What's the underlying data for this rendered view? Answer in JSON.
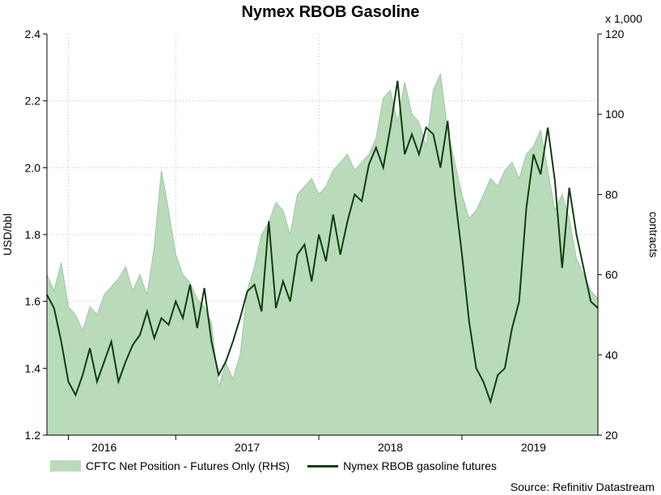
{
  "chart_data": {
    "type": "line",
    "title": "Nymex RBOB Gasoline",
    "ylabel": "USD/bbl",
    "y2label": "contracts",
    "y2_multiplier_label": "x 1,000",
    "ylim": [
      1.2,
      2.4
    ],
    "y2lim": [
      20,
      120
    ],
    "yticks": [
      "1.2",
      "1.4",
      "1.6",
      "1.8",
      "2.0",
      "2.2",
      "2.4"
    ],
    "y2ticks": [
      "20",
      "40",
      "60",
      "80",
      "100",
      "120"
    ],
    "xlim": [
      2015.6,
      2019.45
    ],
    "xticks": [
      {
        "label": "2016",
        "x": 2016.0
      },
      {
        "label": "2017",
        "x": 2017.0
      },
      {
        "label": "2018",
        "x": 2018.0
      },
      {
        "label": "2019",
        "x": 2019.0
      }
    ],
    "year_lines": [
      2015.75,
      2016.5,
      2017.5,
      2018.5
    ],
    "grid": true,
    "legend_position": "bottom-left",
    "source": "Source: Refinitiv Datastream",
    "series": [
      {
        "name": "CFTC Net Position - Futures Only (RHS)",
        "axis": "right",
        "style": "area",
        "color": "#b9dbb9",
        "x": [
          2015.6,
          2015.65,
          2015.7,
          2015.75,
          2015.8,
          2015.85,
          2015.9,
          2015.95,
          2016.0,
          2016.05,
          2016.1,
          2016.15,
          2016.2,
          2016.25,
          2016.3,
          2016.35,
          2016.4,
          2016.45,
          2016.5,
          2016.55,
          2016.6,
          2016.65,
          2016.7,
          2016.75,
          2016.8,
          2016.85,
          2016.9,
          2016.95,
          2017.0,
          2017.05,
          2017.1,
          2017.15,
          2017.2,
          2017.25,
          2017.3,
          2017.35,
          2017.4,
          2017.45,
          2017.5,
          2017.55,
          2017.6,
          2017.65,
          2017.7,
          2017.75,
          2017.8,
          2017.85,
          2017.9,
          2017.95,
          2018.0,
          2018.05,
          2018.1,
          2018.15,
          2018.2,
          2018.25,
          2018.3,
          2018.35,
          2018.4,
          2018.45,
          2018.5,
          2018.55,
          2018.6,
          2018.65,
          2018.7,
          2018.75,
          2018.8,
          2018.85,
          2018.9,
          2018.95,
          2019.0,
          2019.05,
          2019.1,
          2019.15,
          2019.2,
          2019.25,
          2019.3,
          2019.35,
          2019.4,
          2019.45
        ],
        "values": [
          60,
          56,
          63,
          52,
          50,
          46,
          52,
          50,
          55,
          57,
          59,
          62,
          56,
          60,
          55,
          67,
          86,
          76,
          65,
          60,
          58,
          54,
          52,
          48,
          32,
          38,
          34,
          40,
          56,
          62,
          70,
          73,
          78,
          76,
          70,
          80,
          82,
          84,
          80,
          82,
          86,
          88,
          90,
          86,
          88,
          90,
          94,
          104,
          106,
          98,
          108,
          100,
          98,
          92,
          106,
          110,
          96,
          88,
          80,
          74,
          76,
          80,
          84,
          82,
          86,
          88,
          84,
          90,
          92,
          96,
          86,
          76,
          80,
          74,
          64,
          60,
          56,
          54
        ]
      },
      {
        "name": "Nymex RBOB gasoline futures",
        "axis": "left",
        "style": "line",
        "color": "#0f3d0f",
        "x": [
          2015.6,
          2015.65,
          2015.7,
          2015.75,
          2015.8,
          2015.85,
          2015.9,
          2015.95,
          2016.0,
          2016.05,
          2016.1,
          2016.15,
          2016.2,
          2016.25,
          2016.3,
          2016.35,
          2016.4,
          2016.45,
          2016.5,
          2016.55,
          2016.6,
          2016.65,
          2016.7,
          2016.75,
          2016.8,
          2016.85,
          2016.9,
          2016.95,
          2017.0,
          2017.05,
          2017.1,
          2017.15,
          2017.2,
          2017.25,
          2017.3,
          2017.35,
          2017.4,
          2017.45,
          2017.5,
          2017.55,
          2017.6,
          2017.65,
          2017.7,
          2017.75,
          2017.8,
          2017.85,
          2017.9,
          2017.95,
          2018.0,
          2018.05,
          2018.1,
          2018.15,
          2018.2,
          2018.25,
          2018.3,
          2018.35,
          2018.4,
          2018.45,
          2018.5,
          2018.55,
          2018.6,
          2018.65,
          2018.7,
          2018.75,
          2018.8,
          2018.85,
          2018.9,
          2018.95,
          2019.0,
          2019.05,
          2019.1,
          2019.15,
          2019.2,
          2019.25,
          2019.3,
          2019.35,
          2019.4,
          2019.45
        ],
        "values": [
          1.62,
          1.58,
          1.48,
          1.36,
          1.32,
          1.38,
          1.46,
          1.36,
          1.42,
          1.48,
          1.36,
          1.42,
          1.47,
          1.5,
          1.57,
          1.49,
          1.55,
          1.53,
          1.6,
          1.55,
          1.65,
          1.52,
          1.64,
          1.48,
          1.38,
          1.42,
          1.48,
          1.55,
          1.63,
          1.65,
          1.57,
          1.84,
          1.58,
          1.66,
          1.6,
          1.74,
          1.77,
          1.66,
          1.8,
          1.72,
          1.86,
          1.74,
          1.84,
          1.92,
          1.9,
          2.01,
          2.06,
          2.0,
          2.12,
          2.26,
          2.04,
          2.1,
          2.04,
          2.12,
          2.1,
          2.0,
          2.14,
          1.92,
          1.74,
          1.54,
          1.4,
          1.36,
          1.3,
          1.38,
          1.4,
          1.52,
          1.6,
          1.88,
          2.04,
          1.98,
          2.12,
          1.96,
          1.7,
          1.94,
          1.8,
          1.7,
          1.6,
          1.58
        ]
      }
    ]
  }
}
